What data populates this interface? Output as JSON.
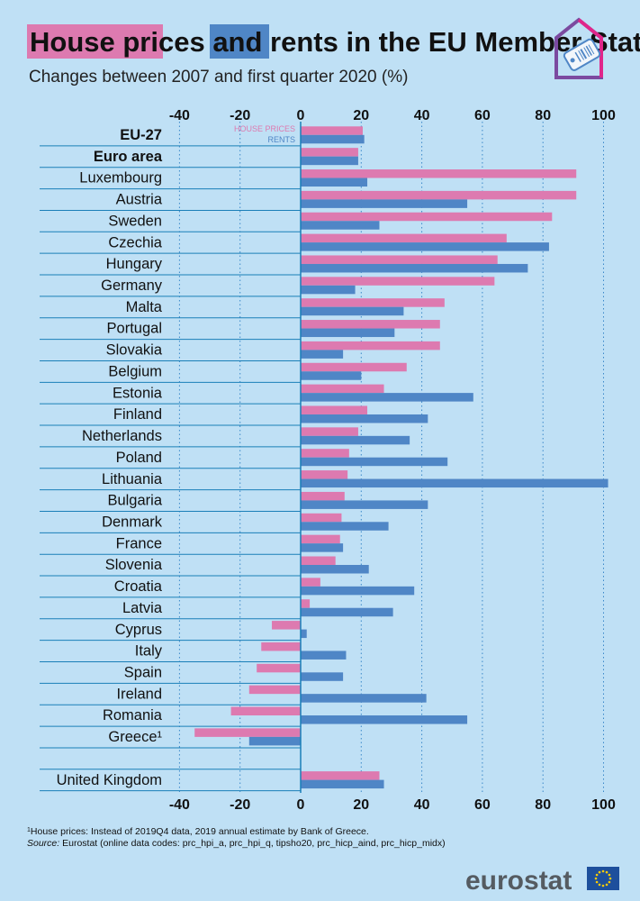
{
  "colors": {
    "background": "#bfe0f5",
    "house_prices": "#dd7ab0",
    "rents": "#4f86c6",
    "axis": "#1a7fb8",
    "grid": "#3a88c9",
    "eu_blue": "#1d4f9c",
    "eu_star": "#ffcc00",
    "logo_purple": "#7b4aa0",
    "logo_pink": "#e0268a"
  },
  "header": {
    "title_part1": "House prices",
    "title_part2": " and ",
    "title_part3": "rents",
    "title_part4": " in the EU Member States",
    "subtitle": "Changes between 2007 and first quarter 2020 (%)"
  },
  "logo": {
    "icon": "price-tag-icon"
  },
  "chart_data": {
    "type": "bar",
    "orientation": "horizontal",
    "xlim": [
      -40,
      100
    ],
    "xticks": [
      "-40",
      "-20",
      "0",
      "20",
      "40",
      "60",
      "80",
      "100"
    ],
    "grid": "vertical dotted",
    "legend_placement": "top, next to first row",
    "series": [
      {
        "key": "house_prices",
        "name": "HOUSE PRICES"
      },
      {
        "key": "rents",
        "name": "RENTS"
      }
    ],
    "categories": [
      {
        "label": "EU-27",
        "bold": true,
        "house_prices": 20.5,
        "rents": 21
      },
      {
        "label": "Euro area",
        "bold": true,
        "house_prices": 19,
        "rents": 19
      },
      {
        "label": "Luxembourg",
        "house_prices": 91,
        "rents": 22
      },
      {
        "label": "Austria",
        "house_prices": 91,
        "rents": 55
      },
      {
        "label": "Sweden",
        "house_prices": 83,
        "rents": 26
      },
      {
        "label": "Czechia",
        "house_prices": 68,
        "rents": 82
      },
      {
        "label": "Hungary",
        "house_prices": 65,
        "rents": 75
      },
      {
        "label": "Germany",
        "house_prices": 64,
        "rents": 18
      },
      {
        "label": "Malta",
        "house_prices": 47.5,
        "rents": 34
      },
      {
        "label": "Portugal",
        "house_prices": 46,
        "rents": 31
      },
      {
        "label": "Slovakia",
        "house_prices": 46,
        "rents": 14
      },
      {
        "label": "Belgium",
        "house_prices": 35,
        "rents": 20
      },
      {
        "label": "Estonia",
        "house_prices": 27.5,
        "rents": 57
      },
      {
        "label": "Finland",
        "house_prices": 22,
        "rents": 42
      },
      {
        "label": "Netherlands",
        "house_prices": 19,
        "rents": 36
      },
      {
        "label": "Poland",
        "house_prices": 16,
        "rents": 48.5
      },
      {
        "label": "Lithuania",
        "house_prices": 15.5,
        "rents": 101.5
      },
      {
        "label": "Bulgaria",
        "house_prices": 14.5,
        "rents": 42
      },
      {
        "label": "Denmark",
        "house_prices": 13.5,
        "rents": 29
      },
      {
        "label": "France",
        "house_prices": 13,
        "rents": 14
      },
      {
        "label": "Slovenia",
        "house_prices": 11.5,
        "rents": 22.5
      },
      {
        "label": "Croatia",
        "house_prices": 6.5,
        "rents": 37.5
      },
      {
        "label": "Latvia",
        "house_prices": 3,
        "rents": 30.5
      },
      {
        "label": "Cyprus",
        "house_prices": -9.5,
        "rents": 2
      },
      {
        "label": "Italy",
        "house_prices": -13,
        "rents": 15
      },
      {
        "label": "Spain",
        "house_prices": -14.5,
        "rents": 14
      },
      {
        "label": "Ireland",
        "house_prices": -17,
        "rents": 41.5
      },
      {
        "label": "Romania",
        "house_prices": -23,
        "rents": 55
      },
      {
        "label": "Greece¹",
        "house_prices": -35,
        "rents": -17
      },
      {
        "label": "",
        "house_prices": null,
        "rents": null
      },
      {
        "label": "United Kingdom",
        "house_prices": 26,
        "rents": 27.5
      }
    ]
  },
  "footer": {
    "note_marker": "1",
    "note": "House prices: Instead of 2019Q4 data, 2019 annual estimate by Bank of Greece.",
    "source_label": "Source:",
    "source_text": " Eurostat (online data codes: prc_hpi_a, prc_hpi_q, tipsho20, prc_hicp_aind, prc_hicp_midx)",
    "brand": "eurostat",
    "flag_icon": "eu-flag-icon"
  }
}
